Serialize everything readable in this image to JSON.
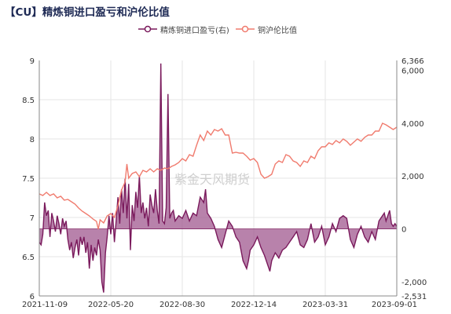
{
  "title": "【CU】精炼铜进口盈亏和沪伦比值",
  "watermark": "紫金天风期货",
  "chart_data": {
    "type": "line",
    "x_ticks": [
      "2021-11-09",
      "2022-05-20",
      "2022-08-30",
      "2022-12-14",
      "2023-03-31",
      "2023-09-01"
    ],
    "y_left": {
      "lim": [
        6,
        9
      ],
      "ticks": [
        "6",
        "6.5",
        "7",
        "7.5",
        "8",
        "8.5",
        "9"
      ]
    },
    "y_right": {
      "lim": [
        -2531,
        6366
      ],
      "ticks": [
        "-2,531",
        "-2,000",
        "0",
        "2,000",
        "4,000",
        "6,000",
        "6,366"
      ]
    },
    "series": [
      {
        "name": "精炼铜进口盈亏(右)",
        "axis": "right",
        "style": "filled-area",
        "color": "#7a1a5c",
        "fill": "#a0588f",
        "values": [
          [
            0,
            -500
          ],
          [
            0.005,
            -600
          ],
          [
            0.01,
            -200
          ],
          [
            0.015,
            1000
          ],
          [
            0.02,
            500
          ],
          [
            0.025,
            700
          ],
          [
            0.03,
            -300
          ],
          [
            0.035,
            600
          ],
          [
            0.04,
            300
          ],
          [
            0.045,
            -100
          ],
          [
            0.05,
            500
          ],
          [
            0.055,
            200
          ],
          [
            0.06,
            -200
          ],
          [
            0.065,
            400
          ],
          [
            0.07,
            100
          ],
          [
            0.075,
            300
          ],
          [
            0.08,
            -400
          ],
          [
            0.085,
            -800
          ],
          [
            0.09,
            -500
          ],
          [
            0.095,
            -1100
          ],
          [
            0.1,
            -700
          ],
          [
            0.105,
            -400
          ],
          [
            0.11,
            -1000
          ],
          [
            0.115,
            -300
          ],
          [
            0.12,
            -600
          ],
          [
            0.125,
            -300
          ],
          [
            0.13,
            -900
          ],
          [
            0.135,
            -500
          ],
          [
            0.14,
            -1500
          ],
          [
            0.145,
            -600
          ],
          [
            0.15,
            -1200
          ],
          [
            0.155,
            -700
          ],
          [
            0.16,
            -1000
          ],
          [
            0.165,
            -400
          ],
          [
            0.17,
            -800
          ],
          [
            0.175,
            -2000
          ],
          [
            0.18,
            -2400
          ],
          [
            0.185,
            -900
          ],
          [
            0.19,
            -300
          ],
          [
            0.195,
            500
          ],
          [
            0.2,
            -200
          ],
          [
            0.205,
            600
          ],
          [
            0.21,
            -500
          ],
          [
            0.215,
            300
          ],
          [
            0.22,
            1200
          ],
          [
            0.225,
            200
          ],
          [
            0.23,
            1500
          ],
          [
            0.235,
            600
          ],
          [
            0.24,
            1900
          ],
          [
            0.245,
            400
          ],
          [
            0.25,
            1700
          ],
          [
            0.255,
            -800
          ],
          [
            0.26,
            900
          ],
          [
            0.265,
            300
          ],
          [
            0.27,
            1400
          ],
          [
            0.275,
            800
          ],
          [
            0.28,
            2000
          ],
          [
            0.285,
            600
          ],
          [
            0.29,
            1000
          ],
          [
            0.295,
            400
          ],
          [
            0.3,
            800
          ],
          [
            0.305,
            100
          ],
          [
            0.31,
            1300
          ],
          [
            0.315,
            900
          ],
          [
            0.32,
            600
          ],
          [
            0.325,
            1500
          ],
          [
            0.33,
            700
          ],
          [
            0.335,
            200
          ],
          [
            0.34,
            6250
          ],
          [
            0.345,
            300
          ],
          [
            0.35,
            200
          ],
          [
            0.355,
            800
          ],
          [
            0.36,
            5100
          ],
          [
            0.365,
            400
          ],
          [
            0.37,
            600
          ],
          [
            0.375,
            700
          ],
          [
            0.38,
            300
          ],
          [
            0.39,
            500
          ],
          [
            0.4,
            400
          ],
          [
            0.41,
            700
          ],
          [
            0.42,
            300
          ],
          [
            0.43,
            600
          ],
          [
            0.44,
            500
          ],
          [
            0.45,
            1200
          ],
          [
            0.46,
            1000
          ],
          [
            0.465,
            1500
          ],
          [
            0.47,
            600
          ],
          [
            0.48,
            400
          ],
          [
            0.49,
            100
          ],
          [
            0.5,
            -400
          ],
          [
            0.51,
            -700
          ],
          [
            0.52,
            -200
          ],
          [
            0.53,
            300
          ],
          [
            0.54,
            100
          ],
          [
            0.55,
            -300
          ],
          [
            0.56,
            -500
          ],
          [
            0.57,
            -1200
          ],
          [
            0.58,
            -1500
          ],
          [
            0.585,
            -1200
          ],
          [
            0.59,
            -800
          ],
          [
            0.6,
            -600
          ],
          [
            0.61,
            -300
          ],
          [
            0.62,
            -700
          ],
          [
            0.63,
            -1000
          ],
          [
            0.64,
            -1400
          ],
          [
            0.645,
            -1600
          ],
          [
            0.65,
            -1200
          ],
          [
            0.66,
            -900
          ],
          [
            0.67,
            -1100
          ],
          [
            0.68,
            -800
          ],
          [
            0.69,
            -700
          ],
          [
            0.7,
            -500
          ],
          [
            0.71,
            -300
          ],
          [
            0.72,
            -100
          ],
          [
            0.73,
            -600
          ],
          [
            0.74,
            -700
          ],
          [
            0.75,
            -400
          ],
          [
            0.76,
            200
          ],
          [
            0.77,
            -500
          ],
          [
            0.78,
            -300
          ],
          [
            0.79,
            100
          ],
          [
            0.8,
            -600
          ],
          [
            0.81,
            -300
          ],
          [
            0.82,
            200
          ],
          [
            0.83,
            -100
          ],
          [
            0.84,
            400
          ],
          [
            0.85,
            500
          ],
          [
            0.86,
            400
          ],
          [
            0.87,
            -400
          ],
          [
            0.88,
            -700
          ],
          [
            0.89,
            -200
          ],
          [
            0.9,
            100
          ],
          [
            0.91,
            -300
          ],
          [
            0.92,
            -500
          ],
          [
            0.93,
            -100
          ],
          [
            0.94,
            -400
          ],
          [
            0.95,
            300
          ],
          [
            0.96,
            500
          ],
          [
            0.965,
            600
          ],
          [
            0.97,
            300
          ],
          [
            0.975,
            500
          ],
          [
            0.98,
            700
          ],
          [
            0.985,
            200
          ],
          [
            0.99,
            100
          ],
          [
            0.995,
            200
          ],
          [
            1,
            100
          ]
        ]
      },
      {
        "name": "铜沪伦比值",
        "axis": "left",
        "style": "line",
        "color": "#f07b6e",
        "values": [
          [
            0,
            7.3
          ],
          [
            0.01,
            7.28
          ],
          [
            0.02,
            7.32
          ],
          [
            0.03,
            7.28
          ],
          [
            0.04,
            7.3
          ],
          [
            0.05,
            7.25
          ],
          [
            0.06,
            7.27
          ],
          [
            0.07,
            7.22
          ],
          [
            0.08,
            7.23
          ],
          [
            0.09,
            7.2
          ],
          [
            0.1,
            7.17
          ],
          [
            0.11,
            7.12
          ],
          [
            0.12,
            7.08
          ],
          [
            0.13,
            7.05
          ],
          [
            0.14,
            7.02
          ],
          [
            0.15,
            6.98
          ],
          [
            0.16,
            6.95
          ],
          [
            0.165,
            6.85
          ],
          [
            0.17,
            6.97
          ],
          [
            0.18,
            6.93
          ],
          [
            0.19,
            7.02
          ],
          [
            0.2,
            7.05
          ],
          [
            0.21,
            7.0
          ],
          [
            0.22,
            7.15
          ],
          [
            0.23,
            7.35
          ],
          [
            0.24,
            7.45
          ],
          [
            0.245,
            7.68
          ],
          [
            0.25,
            7.5
          ],
          [
            0.26,
            7.56
          ],
          [
            0.27,
            7.58
          ],
          [
            0.28,
            7.52
          ],
          [
            0.29,
            7.6
          ],
          [
            0.3,
            7.58
          ],
          [
            0.31,
            7.62
          ],
          [
            0.32,
            7.58
          ],
          [
            0.33,
            7.62
          ],
          [
            0.34,
            7.6
          ],
          [
            0.35,
            7.63
          ],
          [
            0.36,
            7.62
          ],
          [
            0.37,
            7.65
          ],
          [
            0.38,
            7.67
          ],
          [
            0.39,
            7.7
          ],
          [
            0.4,
            7.75
          ],
          [
            0.41,
            7.72
          ],
          [
            0.42,
            7.8
          ],
          [
            0.43,
            7.78
          ],
          [
            0.44,
            7.92
          ],
          [
            0.45,
            8.05
          ],
          [
            0.46,
            7.98
          ],
          [
            0.47,
            8.1
          ],
          [
            0.48,
            8.05
          ],
          [
            0.49,
            8.12
          ],
          [
            0.5,
            8.1
          ],
          [
            0.51,
            8.13
          ],
          [
            0.52,
            8.05
          ],
          [
            0.53,
            8.05
          ],
          [
            0.54,
            7.82
          ],
          [
            0.55,
            7.83
          ],
          [
            0.56,
            7.82
          ],
          [
            0.57,
            7.82
          ],
          [
            0.58,
            7.78
          ],
          [
            0.59,
            7.73
          ],
          [
            0.6,
            7.75
          ],
          [
            0.61,
            7.7
          ],
          [
            0.62,
            7.55
          ],
          [
            0.63,
            7.5
          ],
          [
            0.64,
            7.52
          ],
          [
            0.65,
            7.55
          ],
          [
            0.66,
            7.68
          ],
          [
            0.67,
            7.72
          ],
          [
            0.68,
            7.7
          ],
          [
            0.69,
            7.8
          ],
          [
            0.7,
            7.78
          ],
          [
            0.71,
            7.72
          ],
          [
            0.72,
            7.7
          ],
          [
            0.73,
            7.65
          ],
          [
            0.74,
            7.72
          ],
          [
            0.75,
            7.7
          ],
          [
            0.76,
            7.78
          ],
          [
            0.77,
            7.75
          ],
          [
            0.78,
            7.85
          ],
          [
            0.79,
            7.9
          ],
          [
            0.8,
            7.9
          ],
          [
            0.81,
            7.95
          ],
          [
            0.82,
            7.93
          ],
          [
            0.83,
            7.98
          ],
          [
            0.84,
            7.95
          ],
          [
            0.85,
            8.0
          ],
          [
            0.86,
            7.97
          ],
          [
            0.87,
            7.92
          ],
          [
            0.88,
            7.96
          ],
          [
            0.89,
            8.0
          ],
          [
            0.9,
            7.97
          ],
          [
            0.91,
            8.02
          ],
          [
            0.92,
            8.05
          ],
          [
            0.93,
            8.05
          ],
          [
            0.94,
            8.1
          ],
          [
            0.95,
            8.1
          ],
          [
            0.96,
            8.2
          ],
          [
            0.97,
            8.18
          ],
          [
            0.98,
            8.15
          ],
          [
            0.99,
            8.12
          ],
          [
            1,
            8.15
          ]
        ]
      }
    ]
  }
}
